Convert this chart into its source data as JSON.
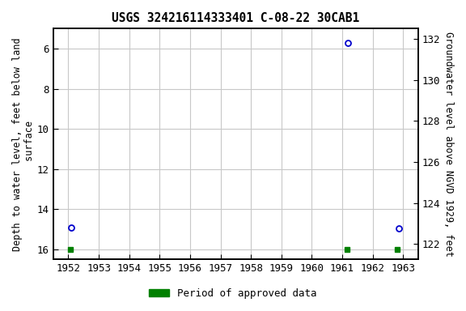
{
  "title": "USGS 324216114333401 C-08-22 30CAB1",
  "ylabel_left": "Depth to water level, feet below land\n surface",
  "ylabel_right": "Groundwater level above NGVD 1929, feet",
  "xlim": [
    1951.5,
    1963.5
  ],
  "ylim_left": [
    16.5,
    5.0
  ],
  "ylim_right": [
    121.25,
    132.5
  ],
  "xticks": [
    1952,
    1953,
    1954,
    1955,
    1956,
    1957,
    1958,
    1959,
    1960,
    1961,
    1962,
    1963
  ],
  "yticks_left": [
    6.0,
    8.0,
    10.0,
    12.0,
    14.0,
    16.0
  ],
  "yticks_right": [
    122.0,
    124.0,
    126.0,
    128.0,
    130.0,
    132.0
  ],
  "data_points": [
    {
      "x": 1952.1,
      "y_left": 14.9
    },
    {
      "x": 1961.2,
      "y_left": 5.7
    },
    {
      "x": 1962.85,
      "y_left": 14.95
    }
  ],
  "approved_periods": [
    {
      "x": 1952.08
    },
    {
      "x": 1961.15
    },
    {
      "x": 1962.82
    }
  ],
  "point_color": "#0000cc",
  "approved_color": "#008000",
  "background_color": "#ffffff",
  "grid_color": "#c8c8c8",
  "title_fontsize": 10.5,
  "label_fontsize": 8.5,
  "tick_fontsize": 9,
  "legend_fontsize": 9
}
